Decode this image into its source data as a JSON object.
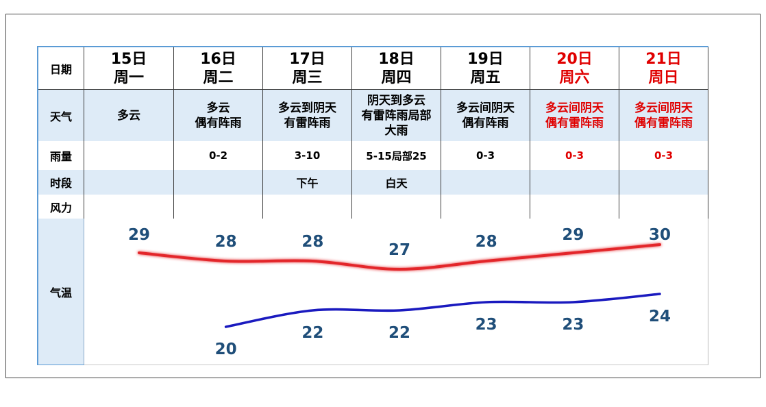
{
  "table": {
    "labels": {
      "date": "日期",
      "weather": "天气",
      "rain": "雨量",
      "period": "时段",
      "wind": "风力",
      "temp": "气温"
    },
    "days": [
      {
        "weekday": "周一",
        "weather": [
          "多云"
        ],
        "rain": "",
        "period": "",
        "wind": ""
      },
      {
        "weekday": "周二",
        "weather": [
          "多云",
          "偶有阵雨"
        ],
        "rain": "0-2",
        "period": "",
        "wind": ""
      },
      {
        "weekday": "周三",
        "weather": [
          "多云到阴天",
          "有雷阵雨"
        ],
        "rain": "3-10",
        "period": "下午",
        "wind": ""
      },
      {
        "weekday": "周四",
        "weather": [
          "阴天到多云",
          "有雷阵雨局部",
          "大雨"
        ],
        "rain": "5-15局部25",
        "period": "白天",
        "wind": ""
      },
      {
        "weekday": "周五",
        "weather": [
          "多云间阴天",
          "偶有阵雨"
        ],
        "rain": "0-3",
        "period": "",
        "wind": ""
      },
      {
        "weekday": "周六",
        "weather": [
          "多云间阴天",
          "偶有雷阵雨"
        ],
        "rain": "0-3",
        "period": "",
        "wind": ""
      },
      {
        "weekday": "周日",
        "weather": [
          "多云间阴天",
          "偶有雷阵雨"
        ],
        "rain": "0-3",
        "period": "",
        "wind": ""
      }
    ]
  },
  "colors": {
    "text": "#000000",
    "weekend": "#e00000",
    "band": "#deebf7",
    "frame": "#5b9bd5",
    "temp_label": "#1f4e79"
  },
  "chart_data": {
    "type": "line",
    "categories": [
      "15日",
      "16日",
      "17日",
      "18日",
      "19日",
      "20日",
      "21日"
    ],
    "series": [
      {
        "values": [
          29,
          28,
          28,
          27,
          28,
          29,
          30
        ],
        "color": "#e3262b"
      },
      {
        "values": [
          null,
          20,
          22,
          22,
          23,
          23,
          24
        ],
        "color": "#1a1abf"
      }
    ],
    "grid": false,
    "legend": "none"
  }
}
